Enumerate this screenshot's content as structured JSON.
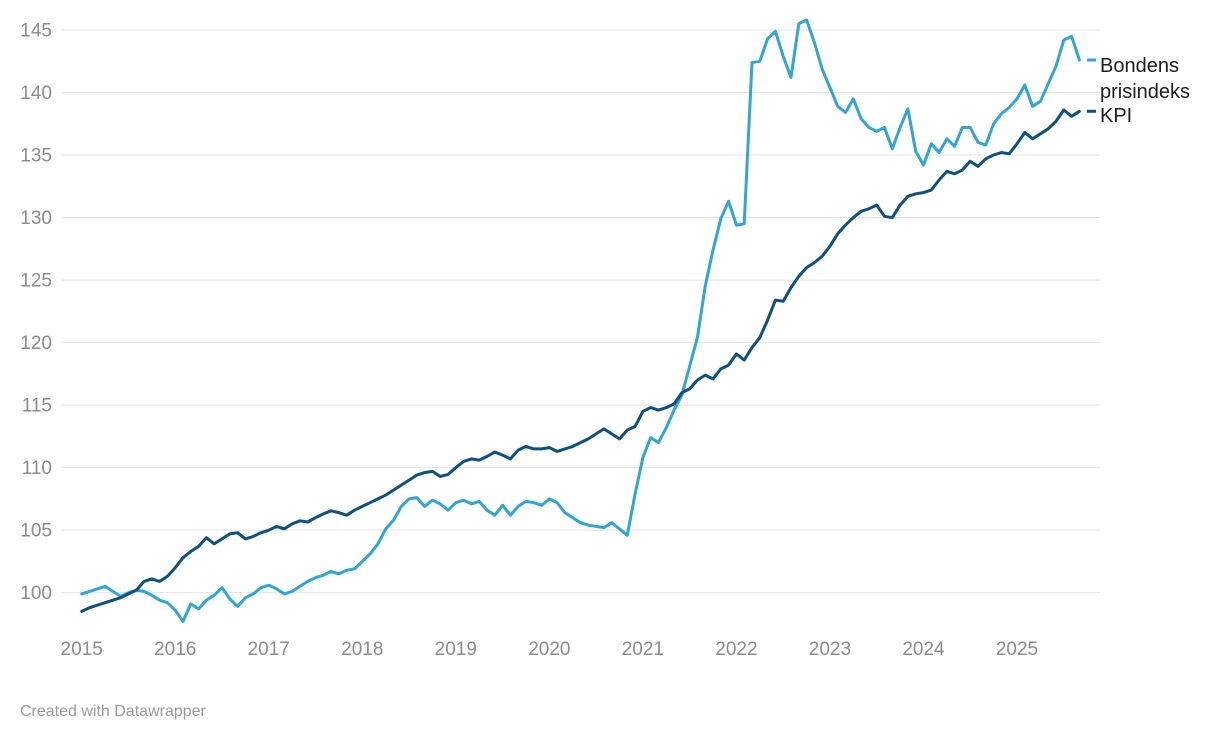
{
  "chart_data": {
    "type": "line",
    "title": "",
    "xlabel": "",
    "ylabel": "",
    "x_start": "2015-01",
    "x_end": "2025-09",
    "x_frequency": "monthly",
    "x_tick_labels": [
      "2015",
      "2016",
      "2017",
      "2018",
      "2019",
      "2020",
      "2021",
      "2022",
      "2023",
      "2024",
      "2025"
    ],
    "y_ticks": [
      100,
      105,
      110,
      115,
      120,
      125,
      130,
      135,
      140,
      145
    ],
    "ylim": [
      97.5,
      146.2
    ],
    "grid": "horizontal",
    "legend_position": "right-of-line-ends",
    "series": [
      {
        "name": "Bondens prisindeks",
        "color": "#31a5d6",
        "values": [
          99.9,
          100.1,
          100.3,
          100.5,
          100.1,
          99.7,
          100.0,
          100.2,
          100.1,
          99.8,
          99.4,
          99.2,
          98.6,
          97.7,
          99.1,
          98.7,
          99.4,
          99.8,
          100.4,
          99.5,
          98.9,
          99.6,
          99.9,
          100.4,
          100.6,
          100.3,
          99.9,
          100.1,
          100.5,
          100.9,
          101.2,
          101.4,
          101.7,
          101.5,
          101.8,
          101.9,
          102.5,
          103.1,
          103.9,
          105.1,
          105.8,
          106.9,
          107.5,
          107.6,
          106.9,
          107.4,
          107.1,
          106.6,
          107.2,
          107.4,
          107.1,
          107.3,
          106.6,
          106.2,
          107.0,
          106.2,
          106.9,
          107.3,
          107.2,
          107.0,
          107.5,
          107.2,
          106.4,
          106.0,
          105.6,
          105.4,
          105.3,
          105.2,
          105.6,
          105.1,
          104.6,
          107.9,
          110.8,
          112.4,
          112.0,
          113.2,
          114.6,
          115.8,
          118.1,
          120.4,
          124.5,
          127.4,
          129.9,
          131.3,
          129.4,
          129.5,
          142.4,
          142.5,
          144.3,
          144.9,
          142.9,
          141.2,
          145.5,
          145.8,
          144.0,
          141.9,
          140.4,
          138.9,
          138.4,
          139.5,
          137.9,
          137.2,
          136.9,
          137.2,
          135.5,
          137.2,
          138.7,
          135.3,
          134.2,
          135.9,
          135.2,
          136.3,
          135.7,
          137.2,
          137.2,
          136.0,
          135.8,
          137.5,
          138.3,
          138.8,
          139.5,
          140.6,
          138.9,
          139.3,
          140.7,
          142.1,
          144.2,
          144.5,
          142.6
        ]
      },
      {
        "name": "KPI",
        "color": "#0f517d",
        "values": [
          98.5,
          98.8,
          99.0,
          99.2,
          99.4,
          99.6,
          99.9,
          100.2,
          100.9,
          101.1,
          100.9,
          101.3,
          102.0,
          102.8,
          103.3,
          103.7,
          104.4,
          103.9,
          104.3,
          104.7,
          104.8,
          104.3,
          104.5,
          104.8,
          105.0,
          105.3,
          105.1,
          105.5,
          105.75,
          105.65,
          106.0,
          106.3,
          106.55,
          106.4,
          106.2,
          106.6,
          106.9,
          107.2,
          107.5,
          107.8,
          108.2,
          108.6,
          109.0,
          109.4,
          109.6,
          109.7,
          109.3,
          109.45,
          110.0,
          110.5,
          110.7,
          110.6,
          110.9,
          111.25,
          111.0,
          110.7,
          111.4,
          111.7,
          111.5,
          111.5,
          111.6,
          111.3,
          111.5,
          111.7,
          112.0,
          112.3,
          112.7,
          113.1,
          112.7,
          112.3,
          113.0,
          113.3,
          114.5,
          114.8,
          114.6,
          114.8,
          115.1,
          116.0,
          116.3,
          117.0,
          117.4,
          117.1,
          117.9,
          118.2,
          119.1,
          118.6,
          119.6,
          120.4,
          121.8,
          123.4,
          123.3,
          124.4,
          125.3,
          126.0,
          126.4,
          126.9,
          127.7,
          128.7,
          129.4,
          130.0,
          130.5,
          130.7,
          131.0,
          130.1,
          130.0,
          131.0,
          131.7,
          131.9,
          132.0,
          132.2,
          133.0,
          133.7,
          133.5,
          133.8,
          134.5,
          134.1,
          134.7,
          135.0,
          135.2,
          135.1,
          135.9,
          136.8,
          136.3,
          136.7,
          137.1,
          137.7,
          138.6,
          138.1,
          138.5
        ]
      }
    ]
  },
  "legend": {
    "series1_line1": "Bondens",
    "series1_line2": "prisindeks",
    "series2_label": "KPI"
  },
  "footer": {
    "attribution": "Created with Datawrapper"
  },
  "colors": {
    "background": "#ffffff",
    "gridline": "#e4e4e4",
    "axis_text": "#8c8c8c",
    "legend_text": "#1d1d1d",
    "series1": "#31a5d6",
    "series2": "#0f517d"
  }
}
